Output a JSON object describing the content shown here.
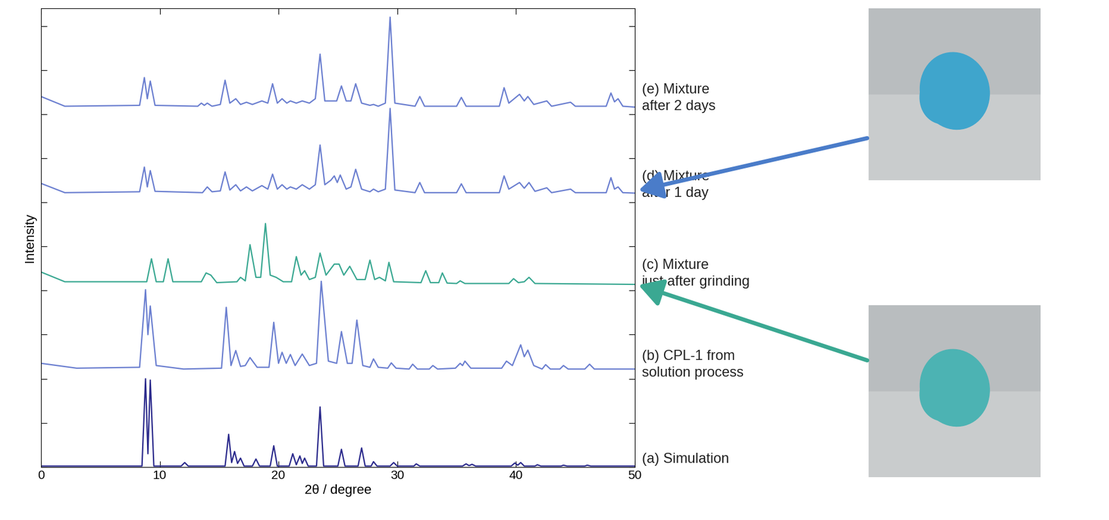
{
  "chart_data": {
    "type": "line",
    "xlabel": "2θ / degree",
    "ylabel": "Intensity",
    "xlim": [
      0,
      50
    ],
    "xticks": [
      0,
      10,
      20,
      30,
      40,
      50
    ],
    "ylim": [
      0,
      10.4
    ],
    "yticks": [
      0,
      1,
      2,
      3,
      4,
      5,
      6,
      7,
      8,
      9,
      10
    ],
    "tick_labels": "x",
    "series": [
      {
        "name": "(a) Simulation",
        "color": "#2b2a8c",
        "x": [
          0,
          8.5,
          8.8,
          9.0,
          9.2,
          9.5,
          11.8,
          12.1,
          12.4,
          15.5,
          15.8,
          16.05,
          16.3,
          16.55,
          16.8,
          17.1,
          17.8,
          18.1,
          18.4,
          19.3,
          19.6,
          19.9,
          20.9,
          21.2,
          21.5,
          21.8,
          22.0,
          22.2,
          22.5,
          23.2,
          23.5,
          23.8,
          25.0,
          25.3,
          25.6,
          26.7,
          27.0,
          27.3,
          27.8,
          28.0,
          28.3,
          29.4,
          29.7,
          30.0,
          31.4,
          31.6,
          31.9,
          35.5,
          35.8,
          36.05,
          36.3,
          36.6,
          39.6,
          39.9,
          40.15,
          40.4,
          40.7,
          41.6,
          41.8,
          42.1,
          43.8,
          44.0,
          44.3,
          45.8,
          46.0,
          46.3,
          50
        ],
        "values": [
          0.02,
          0.02,
          2.0,
          0.3,
          1.97,
          0.02,
          0.02,
          0.1,
          0.02,
          0.02,
          0.74,
          0.1,
          0.35,
          0.08,
          0.2,
          0.02,
          0.02,
          0.18,
          0.02,
          0.02,
          0.48,
          0.02,
          0.02,
          0.3,
          0.05,
          0.25,
          0.08,
          0.2,
          0.02,
          0.02,
          1.36,
          0.02,
          0.02,
          0.4,
          0.02,
          0.02,
          0.43,
          0.02,
          0.02,
          0.12,
          0.02,
          0.02,
          0.1,
          0.02,
          0.02,
          0.07,
          0.02,
          0.02,
          0.07,
          0.03,
          0.06,
          0.02,
          0.02,
          0.09,
          0.04,
          0.1,
          0.02,
          0.02,
          0.05,
          0.02,
          0.02,
          0.04,
          0.02,
          0.02,
          0.04,
          0.02,
          0.02
        ]
      },
      {
        "name": "(b) CPL-1 from\nsolution process",
        "color": "#6b7fd0",
        "x": [
          0,
          3,
          8.3,
          8.8,
          9.0,
          9.2,
          9.7,
          12.0,
          15.2,
          15.6,
          16.0,
          16.4,
          16.8,
          17.2,
          17.6,
          18.2,
          19.2,
          19.6,
          20.0,
          20.3,
          20.65,
          21.0,
          21.4,
          22.0,
          22.6,
          23.2,
          23.6,
          24.2,
          24.9,
          25.3,
          25.8,
          26.2,
          26.6,
          27.1,
          27.7,
          28.0,
          28.4,
          29.2,
          29.5,
          29.9,
          31.0,
          31.3,
          31.7,
          32.7,
          33.0,
          33.4,
          34.9,
          35.3,
          35.5,
          35.7,
          36.2,
          38.8,
          39.2,
          39.7,
          40.4,
          40.7,
          41.0,
          41.5,
          42.2,
          42.5,
          42.9,
          43.7,
          44.0,
          44.4,
          45.8,
          46.2,
          46.6,
          50
        ],
        "values": [
          2.35,
          2.24,
          2.26,
          4.02,
          3.0,
          3.65,
          2.3,
          2.22,
          2.24,
          3.62,
          2.3,
          2.64,
          2.28,
          2.3,
          2.48,
          2.26,
          2.26,
          3.28,
          2.35,
          2.6,
          2.35,
          2.55,
          2.3,
          2.56,
          2.3,
          2.35,
          4.21,
          2.4,
          2.35,
          3.07,
          2.35,
          2.35,
          3.33,
          2.3,
          2.26,
          2.45,
          2.26,
          2.24,
          2.36,
          2.24,
          2.22,
          2.33,
          2.22,
          2.22,
          2.3,
          2.22,
          2.24,
          2.35,
          2.3,
          2.4,
          2.24,
          2.24,
          2.4,
          2.3,
          2.77,
          2.5,
          2.65,
          2.3,
          2.22,
          2.32,
          2.22,
          2.22,
          2.3,
          2.22,
          2.22,
          2.33,
          2.22,
          2.22
        ]
      },
      {
        "name": "(c) Mixture\njust after grinding",
        "color": "#3aa892",
        "x": [
          0,
          2,
          8.9,
          9.3,
          9.7,
          10.3,
          10.7,
          11.1,
          13.5,
          13.9,
          14.3,
          14.8,
          16.5,
          16.8,
          17.2,
          17.6,
          18.1,
          18.5,
          18.9,
          19.3,
          19.8,
          20.4,
          21.1,
          21.5,
          21.9,
          22.2,
          22.6,
          23.1,
          23.5,
          24.0,
          24.7,
          25.1,
          25.5,
          26.0,
          26.6,
          27.3,
          27.7,
          28.1,
          28.5,
          29.0,
          29.3,
          29.7,
          32.0,
          32.4,
          32.8,
          33.5,
          33.8,
          34.2,
          35.0,
          35.3,
          35.7,
          39.4,
          39.8,
          40.2,
          40.7,
          41.1,
          41.6,
          50
        ],
        "values": [
          4.42,
          4.2,
          4.2,
          4.72,
          4.2,
          4.2,
          4.72,
          4.2,
          4.2,
          4.4,
          4.35,
          4.18,
          4.2,
          4.3,
          4.22,
          5.04,
          4.3,
          4.3,
          5.52,
          4.35,
          4.3,
          4.2,
          4.2,
          4.77,
          4.35,
          4.45,
          4.25,
          4.3,
          4.85,
          4.35,
          4.6,
          4.6,
          4.35,
          4.55,
          4.25,
          4.25,
          4.69,
          4.25,
          4.3,
          4.22,
          4.64,
          4.2,
          4.18,
          4.45,
          4.18,
          4.18,
          4.4,
          4.17,
          4.16,
          4.22,
          4.16,
          4.16,
          4.27,
          4.18,
          4.2,
          4.3,
          4.16,
          4.14
        ]
      },
      {
        "name": "(d) Mixture\nafter 1 day",
        "color": "#6b7fd0",
        "x": [
          0,
          2,
          8.3,
          8.7,
          8.95,
          9.2,
          9.6,
          13.6,
          14.0,
          14.4,
          15.1,
          15.5,
          15.9,
          16.4,
          16.8,
          17.3,
          17.8,
          18.6,
          19.1,
          19.5,
          19.9,
          20.3,
          20.7,
          21.0,
          21.5,
          22.0,
          22.6,
          23.1,
          23.5,
          23.9,
          24.4,
          24.7,
          24.95,
          25.2,
          25.7,
          26.1,
          26.5,
          27.0,
          27.7,
          28.0,
          28.4,
          29.0,
          29.4,
          29.8,
          31.5,
          31.9,
          32.3,
          35.0,
          35.4,
          35.8,
          38.6,
          39.0,
          39.4,
          40.3,
          40.7,
          41.1,
          41.6,
          42.6,
          43.0,
          44.6,
          45.0,
          47.6,
          48.0,
          48.3,
          48.6,
          49.0,
          50
        ],
        "values": [
          6.43,
          6.22,
          6.24,
          6.8,
          6.35,
          6.72,
          6.25,
          6.22,
          6.35,
          6.24,
          6.26,
          6.69,
          6.28,
          6.4,
          6.26,
          6.35,
          6.26,
          6.38,
          6.3,
          6.64,
          6.3,
          6.4,
          6.3,
          6.35,
          6.3,
          6.4,
          6.3,
          6.4,
          7.3,
          6.4,
          6.5,
          6.6,
          6.45,
          6.62,
          6.3,
          6.35,
          6.75,
          6.3,
          6.24,
          6.3,
          6.24,
          6.3,
          8.13,
          6.28,
          6.22,
          6.45,
          6.22,
          6.22,
          6.42,
          6.22,
          6.22,
          6.6,
          6.3,
          6.45,
          6.32,
          6.45,
          6.25,
          6.33,
          6.22,
          6.3,
          6.22,
          6.22,
          6.56,
          6.3,
          6.35,
          6.22,
          6.21
        ]
      },
      {
        "name": "(e) Mixture\nafter 2 days",
        "color": "#6b7fd0",
        "x": [
          0,
          2,
          8.3,
          8.7,
          8.95,
          9.2,
          9.6,
          13.2,
          13.5,
          13.75,
          14.0,
          14.4,
          15.1,
          15.5,
          15.9,
          16.4,
          16.8,
          17.3,
          17.8,
          18.6,
          19.1,
          19.5,
          19.9,
          20.3,
          20.7,
          21.0,
          21.5,
          22.0,
          22.6,
          23.1,
          23.5,
          23.9,
          24.9,
          25.3,
          25.7,
          26.1,
          26.5,
          27.0,
          27.7,
          28.0,
          28.4,
          29.0,
          29.4,
          29.8,
          31.5,
          31.9,
          32.3,
          35.0,
          35.4,
          35.8,
          38.6,
          39.0,
          39.4,
          40.3,
          40.7,
          41.0,
          41.5,
          42.6,
          43.0,
          44.6,
          45.0,
          47.6,
          48.0,
          48.3,
          48.6,
          49.0,
          50
        ],
        "values": [
          8.4,
          8.18,
          8.2,
          8.83,
          8.35,
          8.75,
          8.2,
          8.18,
          8.25,
          8.2,
          8.25,
          8.18,
          8.22,
          8.77,
          8.25,
          8.35,
          8.22,
          8.27,
          8.22,
          8.3,
          8.25,
          8.69,
          8.25,
          8.35,
          8.25,
          8.3,
          8.25,
          8.3,
          8.25,
          8.35,
          9.36,
          8.3,
          8.3,
          8.64,
          8.3,
          8.3,
          8.69,
          8.25,
          8.2,
          8.22,
          8.18,
          8.25,
          10.2,
          8.25,
          8.18,
          8.4,
          8.18,
          8.18,
          8.38,
          8.18,
          8.18,
          8.6,
          8.25,
          8.45,
          8.3,
          8.4,
          8.22,
          8.3,
          8.18,
          8.27,
          8.18,
          8.18,
          8.48,
          8.28,
          8.35,
          8.18,
          8.16
        ]
      }
    ]
  }
}
